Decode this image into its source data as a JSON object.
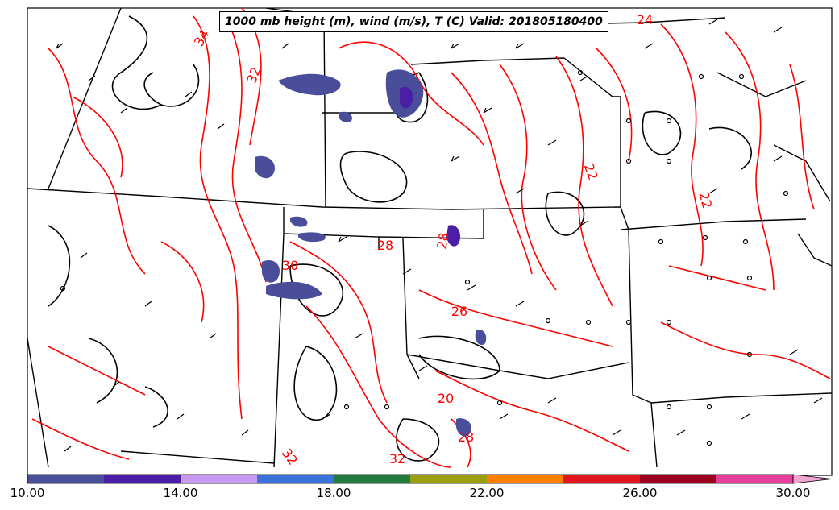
{
  "title": "1000 mb height (m), wind (m/s), T (C) Valid: 201805180400",
  "colorbar": {
    "ticks": [
      "10.00",
      "14.00",
      "18.00",
      "22.00",
      "26.00",
      "30.00"
    ],
    "colors": [
      "#4a4e9a",
      "#4b1ea6",
      "#c79af2",
      "#3a73da",
      "#1f7a3c",
      "#9a9f12",
      "#ff7f00",
      "#e0181e",
      "#9e0022",
      "#e6409a",
      "#f0a4d2"
    ]
  },
  "contour_labels": [
    "34",
    "32",
    "28",
    "24",
    "22",
    "22",
    "28",
    "26",
    "20",
    "32",
    "32",
    "28",
    "30"
  ],
  "colors": {
    "temperature_contour": "#ff0000",
    "height_contour": "#000000",
    "border": "#000000"
  }
}
